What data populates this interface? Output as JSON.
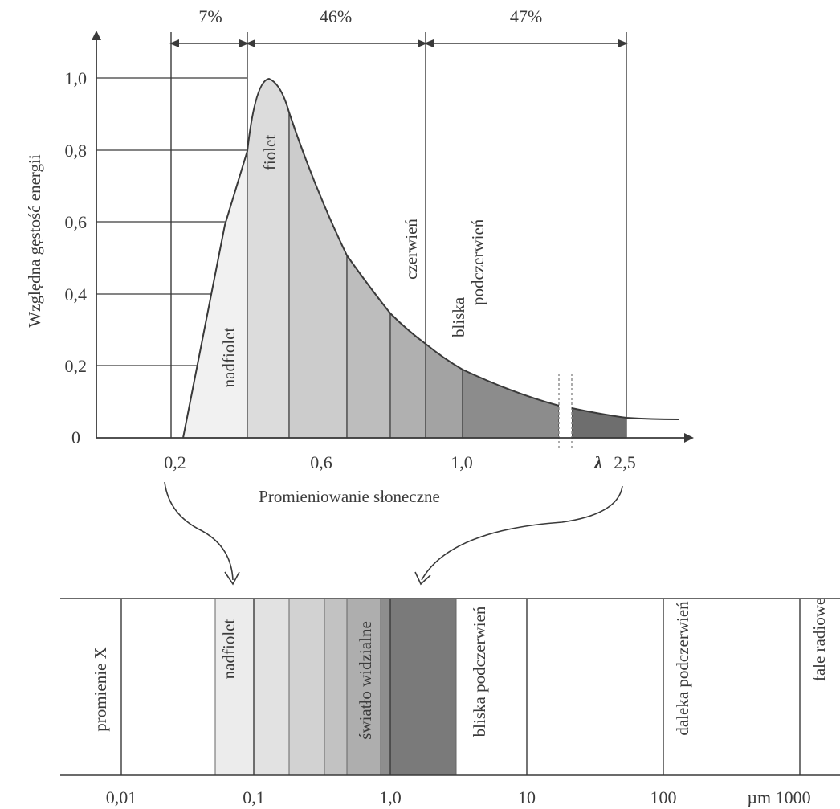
{
  "top_chart": {
    "ylabel": "Względna gęstość energii",
    "xlabel": "Promieniowanie słoneczne",
    "y_ticks": [
      "1,0",
      "0,8",
      "0,6",
      "0,4",
      "0,2",
      "0"
    ],
    "x_ticks": [
      "0,2",
      "0,6",
      "1,0",
      "λ",
      "2,5"
    ],
    "percentages": [
      "7%",
      "46%",
      "47%"
    ],
    "band_labels": {
      "uv": "nadfiolet",
      "violet": "fiolet",
      "red": "czerwień",
      "nir": "bliska podczerwień"
    }
  },
  "bottom_scale": {
    "ticks": [
      "0,01",
      "0,1",
      "1,0",
      "10",
      "100",
      "µm 1000"
    ],
    "band_labels": {
      "xray": "promienie X",
      "uv": "nadfiolet",
      "visible": "światło widzialne",
      "nir": "bliska podczerwień",
      "fir": "daleka podczerwień",
      "radio": "fale radiowe"
    }
  },
  "colors": {
    "axis": "#3a3a3a",
    "uv_fill": "#f1f1f1",
    "violet_fill": "#dcdcdc",
    "visible_mid": "#c6c6c6",
    "visible_deep": "#b3b3b3",
    "red_fill": "#a3a3a3",
    "nir_fill": "#8c8c8c",
    "tail_fill": "#6e6e6e"
  }
}
